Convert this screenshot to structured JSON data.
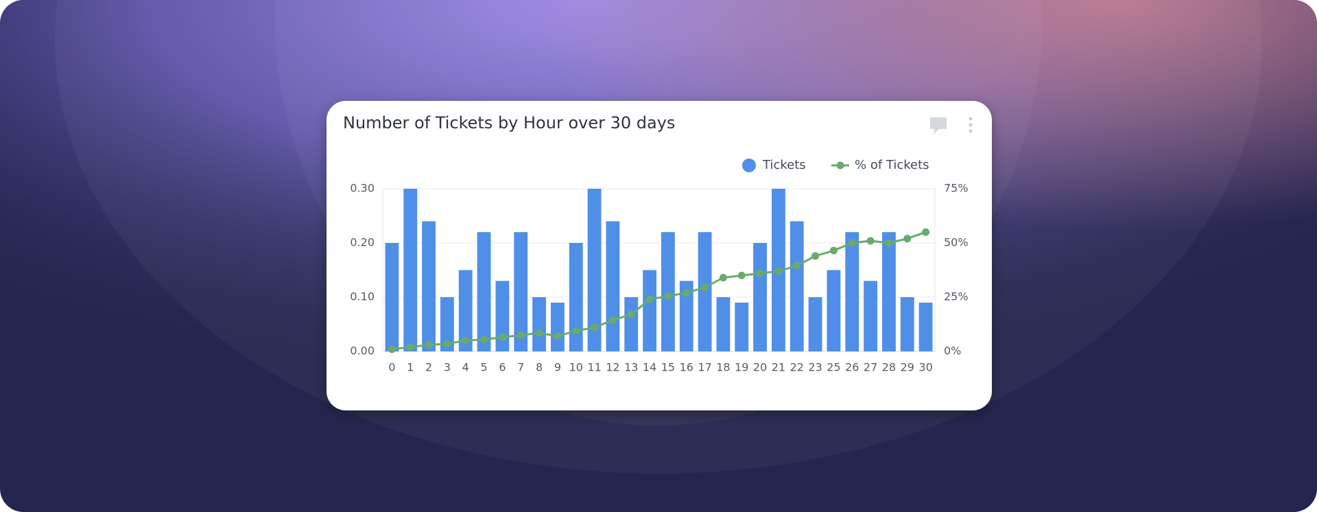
{
  "chart_data": {
    "type": "bar",
    "title": "Number of Tickets by Hour over 30 days",
    "categories": [
      "0",
      "1",
      "2",
      "3",
      "4",
      "5",
      "6",
      "7",
      "8",
      "9",
      "10",
      "11",
      "12",
      "13",
      "14",
      "15",
      "16",
      "17",
      "18",
      "19",
      "20",
      "21",
      "22",
      "23",
      "25",
      "26",
      "27",
      "28",
      "29",
      "30"
    ],
    "series": [
      {
        "name": "Tickets",
        "type": "bar",
        "color": "#4f8fe8",
        "values": [
          0.2,
          0.3,
          0.24,
          0.1,
          0.15,
          0.22,
          0.13,
          0.22,
          0.1,
          0.09,
          0.2,
          0.3,
          0.24,
          0.1,
          0.15,
          0.22,
          0.13,
          0.22,
          0.1,
          0.09,
          0.2,
          0.3,
          0.24,
          0.1,
          0.15,
          0.22,
          0.13,
          0.22,
          0.1,
          0.09
        ]
      },
      {
        "name": "% of Tickets",
        "type": "line",
        "axis": "y2",
        "color": "#6aaa6e",
        "values": [
          1,
          2,
          3,
          3.5,
          5,
          5.5,
          6.5,
          7.5,
          8.5,
          7,
          9.5,
          11,
          14.5,
          17,
          24,
          25.5,
          27,
          29.5,
          34,
          35,
          36,
          37,
          39.5,
          44,
          46.5,
          50,
          51,
          50,
          52,
          55
        ]
      }
    ],
    "ylim": [
      0,
      0.3
    ],
    "yticks": [
      {
        "value": 0,
        "label": "0.00"
      },
      {
        "value": 0.1,
        "label": "0.10"
      },
      {
        "value": 0.2,
        "label": "0.20"
      },
      {
        "value": 0.3,
        "label": "0.30"
      }
    ],
    "y2lim": [
      0,
      75
    ],
    "y2ticks": [
      {
        "value": 0,
        "label": "0%"
      },
      {
        "value": 25,
        "label": "25%"
      },
      {
        "value": 50,
        "label": "50%"
      },
      {
        "value": 75,
        "label": "75%"
      }
    ],
    "grid": true,
    "legend": "top-right"
  }
}
